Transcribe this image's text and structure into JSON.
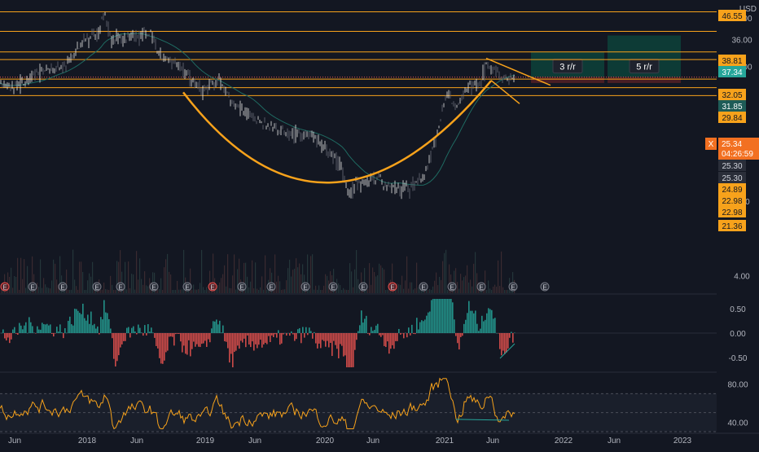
{
  "currency": "USD",
  "price_axis": {
    "ticks": [
      "44.00",
      "36.00",
      "28.00",
      "8.00",
      "4.00"
    ],
    "badges": [
      {
        "text": "46.55",
        "bg": "#f7a21b",
        "fg": "#131722"
      },
      {
        "text": "38.81",
        "bg": "#f7a21b",
        "fg": "#131722"
      },
      {
        "text": "37.34",
        "bg": "#26a69a",
        "fg": "#ffffff"
      },
      {
        "text": "32.05",
        "bg": "#f7a21b",
        "fg": "#131722"
      },
      {
        "text": "31.85",
        "bg": "#1e5c57",
        "fg": "#ffffff"
      },
      {
        "text": "29.84",
        "bg": "#f7a21b",
        "fg": "#131722"
      },
      {
        "text": "25.30",
        "bg": "#2a2e39",
        "fg": "#d1d4dc"
      },
      {
        "text": "25.30",
        "bg": "#2a2e39",
        "fg": "#d1d4dc"
      },
      {
        "text": "24.89",
        "bg": "#f7a21b",
        "fg": "#131722"
      },
      {
        "text": "22.98",
        "bg": "#f7a21b",
        "fg": "#131722"
      },
      {
        "text": "22.98",
        "bg": "#f7a21b",
        "fg": "#131722"
      },
      {
        "text": "21.36",
        "bg": "#f7a21b",
        "fg": "#131722"
      }
    ],
    "last_price": "25.34",
    "countdown": "04:26:59",
    "close_marker": "X"
  },
  "osc_axis": {
    "ticks": [
      "0.50",
      "0.00",
      "-0.50"
    ]
  },
  "rsi_axis": {
    "ticks": [
      "80.00",
      "40.00"
    ]
  },
  "time_axis": {
    "labels": [
      "Jun",
      "2018",
      "Jun",
      "2019",
      "Jun",
      "2020",
      "Jun",
      "2021",
      "Jun",
      "2022",
      "Jun",
      "2023"
    ]
  },
  "positions": [
    {
      "label": "3 r/r"
    },
    {
      "label": "5 r/r"
    }
  ],
  "event_markers": [
    "E",
    "E",
    "E",
    "E",
    "E",
    "E",
    "E",
    "E",
    "E",
    "E",
    "E",
    "E",
    "E",
    "E",
    "E",
    "E",
    "E",
    "E",
    "E",
    "E",
    "E"
  ],
  "colors": {
    "background": "#131722",
    "candle_up": "#e8e8e8",
    "candle_down": "#6a6d78",
    "level_line": "#f7a21b",
    "cup_curve": "#f7a21b",
    "moving_average": "#1f6b62",
    "profit_zone": "#0d3b36",
    "loss_zone": "#4a1e24",
    "osc_up": "#26a69a",
    "osc_down": "#ef5350",
    "rsi_line": "#f7a21b"
  },
  "chart_data": [
    {
      "type": "line",
      "title": "",
      "ylabel": "USD",
      "y_scale": "log",
      "horizontal_levels": [
        46.55,
        38.81,
        32.05,
        29.84,
        24.89,
        22.98,
        21.36
      ],
      "x": [
        "2017-04",
        "2017-06",
        "2017-09",
        "2017-12",
        "2018-01",
        "2018-03",
        "2018-06",
        "2018-09",
        "2018-12",
        "2019-03",
        "2019-06",
        "2019-09",
        "2019-12",
        "2020-03",
        "2020-06",
        "2020-09",
        "2020-12",
        "2021-02",
        "2021-04",
        "2021-06",
        "2021-07"
      ],
      "series": [
        {
          "values": [
            24,
            23,
            27,
            32,
            46,
            35,
            36,
            37,
            22,
            15,
            12,
            10.5,
            8.5,
            6,
            6.4,
            7,
            10,
            22,
            22,
            29,
            25.34
          ]
        }
      ]
    },
    {
      "type": "bar",
      "title": "",
      "ylim": [
        -0.7,
        0.7
      ],
      "ticks": [
        0.5,
        0.0,
        -0.5
      ]
    },
    {
      "type": "line",
      "title": "",
      "ylim": [
        30,
        90
      ],
      "ticks": [
        80,
        40
      ]
    }
  ]
}
